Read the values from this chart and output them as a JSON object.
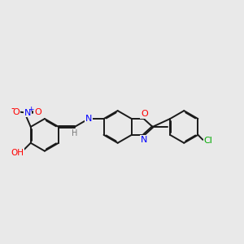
{
  "bg_color": "#e9e9e9",
  "bond_color": "#1a1a1a",
  "atom_colors": {
    "O": "#ff0000",
    "N": "#0000ff",
    "Cl": "#00aa00",
    "H": "#777777",
    "C": "#1a1a1a"
  },
  "lw": 1.4,
  "dbo": 0.06,
  "fs": 7.5,
  "bl": 1.0
}
